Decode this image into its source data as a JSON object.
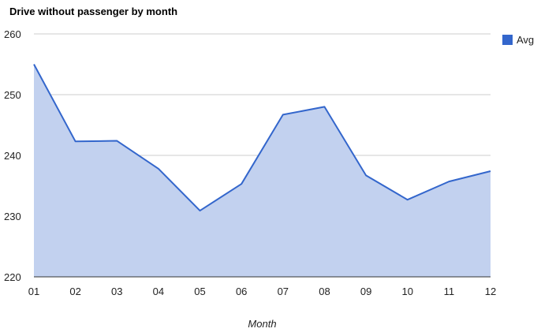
{
  "chart_data": {
    "type": "area",
    "title": "Drive without passenger by month",
    "xlabel": "Month",
    "ylabel": "",
    "categories": [
      "01",
      "02",
      "03",
      "04",
      "05",
      "06",
      "07",
      "08",
      "09",
      "10",
      "11",
      "12"
    ],
    "series": [
      {
        "name": "Avg",
        "values": [
          255.0,
          242.3,
          242.4,
          237.8,
          230.9,
          235.3,
          246.7,
          248.0,
          236.7,
          232.7,
          235.7,
          237.4
        ]
      }
    ],
    "ylim": [
      220,
      260
    ],
    "yticks": [
      220,
      230,
      240,
      250,
      260
    ],
    "grid": true,
    "legend": "right",
    "colors": {
      "line": "#3366cc",
      "fill": "#c2d1ef",
      "grid": "#cccccc",
      "baseline": "#333333"
    }
  }
}
